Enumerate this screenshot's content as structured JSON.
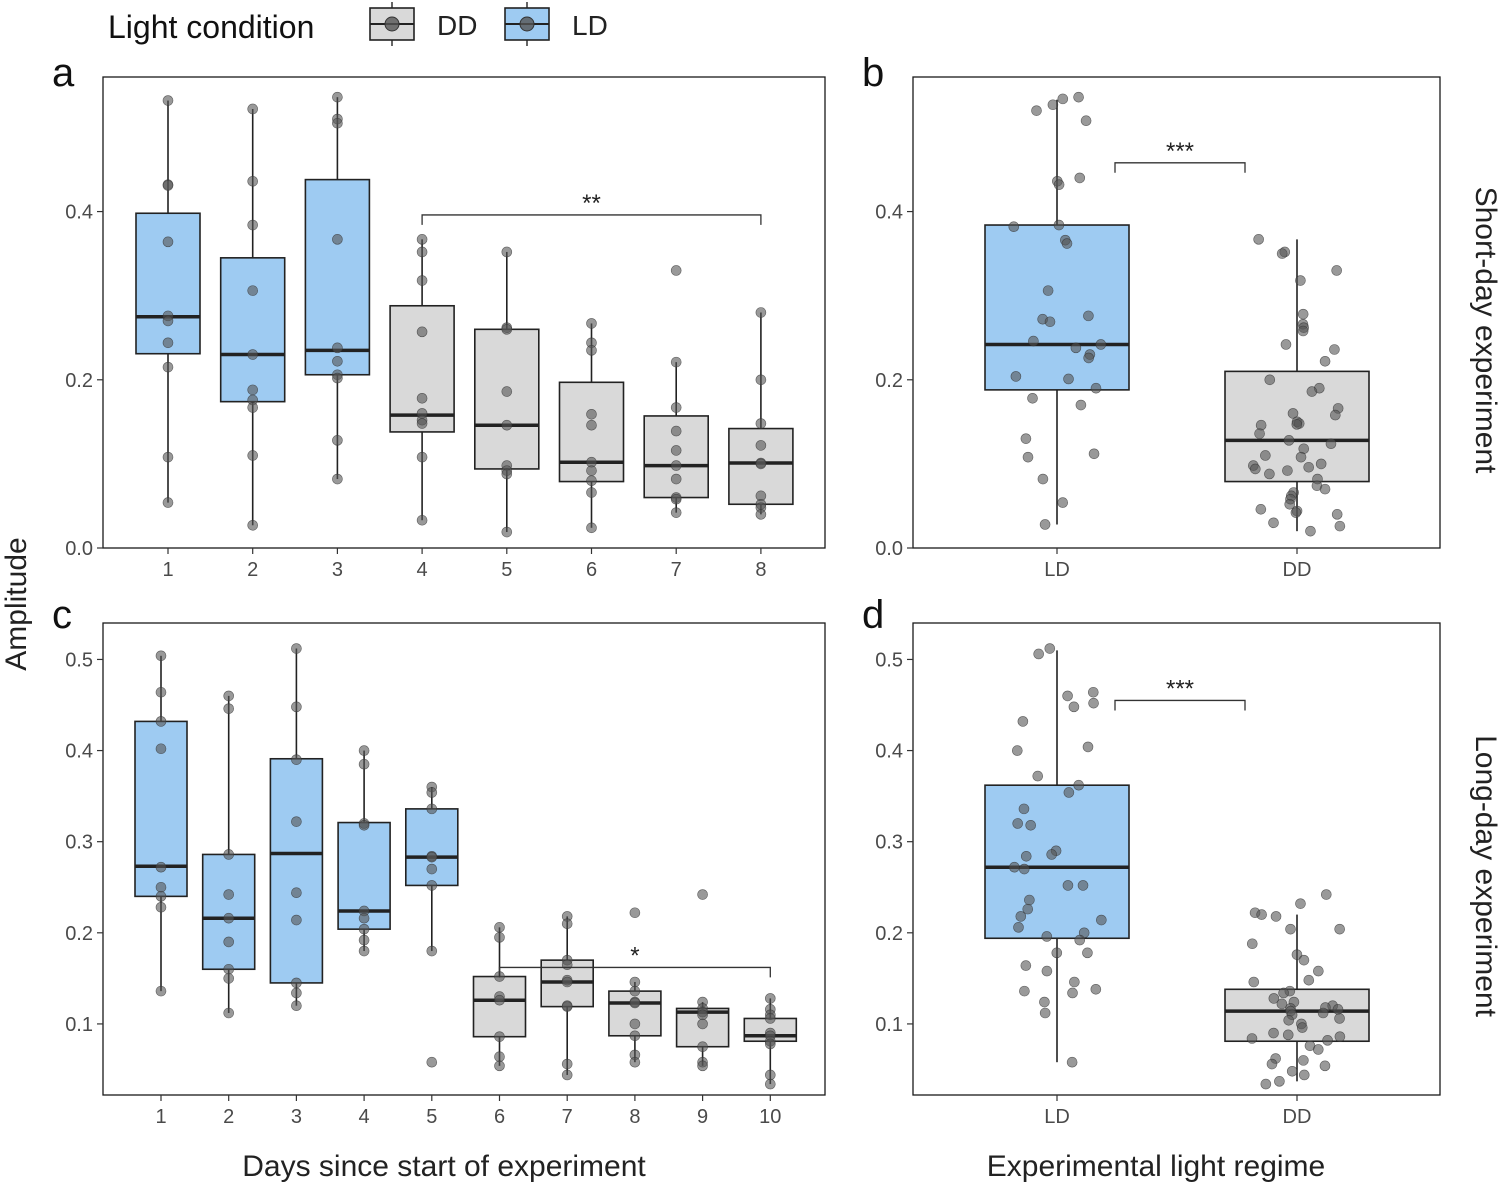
{
  "legend": {
    "title": "Light condition",
    "items": [
      {
        "label": "DD",
        "color": "#d9d9d9"
      },
      {
        "label": "LD",
        "color": "#9ecbf2"
      }
    ]
  },
  "axes": {
    "y_title": "Amplitude",
    "x_title_left": "Days since start of experiment",
    "x_title_right": "Experimental light regime"
  },
  "strips": {
    "top": "Short-day experiment",
    "bottom": "Long-day experiment"
  },
  "colors": {
    "LD": "#9ecbf2",
    "DD": "#d9d9d9"
  },
  "chart_data": [
    {
      "panel": "a",
      "type": "box",
      "categories": [
        "1",
        "2",
        "3",
        "4",
        "5",
        "6",
        "7",
        "8"
      ],
      "ylim": [
        0.0,
        0.56
      ],
      "yticks": [
        0.0,
        0.2,
        0.4
      ],
      "ytick_labels": [
        "0.0",
        "0.2",
        "0.4"
      ],
      "boxes": [
        {
          "cat": "1",
          "group": "LD",
          "q1": 0.231,
          "median": 0.275,
          "q3": 0.398,
          "lo": 0.054,
          "hi": 0.532,
          "points": [
            0.532,
            0.432,
            0.431,
            0.364,
            0.276,
            0.27,
            0.244,
            0.215,
            0.108,
            0.054
          ]
        },
        {
          "cat": "2",
          "group": "LD",
          "q1": 0.174,
          "median": 0.23,
          "q3": 0.345,
          "lo": 0.027,
          "hi": 0.522,
          "points": [
            0.522,
            0.436,
            0.384,
            0.306,
            0.23,
            0.188,
            0.176,
            0.167,
            0.11,
            0.027
          ]
        },
        {
          "cat": "3",
          "group": "LD",
          "q1": 0.206,
          "median": 0.235,
          "q3": 0.438,
          "lo": 0.082,
          "hi": 0.536,
          "points": [
            0.536,
            0.51,
            0.505,
            0.367,
            0.238,
            0.222,
            0.206,
            0.202,
            0.128,
            0.082
          ]
        },
        {
          "cat": "4",
          "group": "DD",
          "q1": 0.138,
          "median": 0.158,
          "q3": 0.288,
          "lo": 0.033,
          "hi": 0.367,
          "points": [
            0.367,
            0.352,
            0.318,
            0.257,
            0.178,
            0.16,
            0.152,
            0.148,
            0.108,
            0.033
          ]
        },
        {
          "cat": "5",
          "group": "DD",
          "q1": 0.094,
          "median": 0.146,
          "q3": 0.26,
          "lo": 0.019,
          "hi": 0.352,
          "points": [
            0.352,
            0.262,
            0.26,
            0.186,
            0.146,
            0.098,
            0.092,
            0.088,
            0.019
          ]
        },
        {
          "cat": "6",
          "group": "DD",
          "q1": 0.079,
          "median": 0.102,
          "q3": 0.197,
          "lo": 0.024,
          "hi": 0.267,
          "points": [
            0.267,
            0.244,
            0.235,
            0.159,
            0.146,
            0.102,
            0.092,
            0.08,
            0.066,
            0.024
          ]
        },
        {
          "cat": "7",
          "group": "DD",
          "q1": 0.06,
          "median": 0.098,
          "q3": 0.157,
          "lo": 0.042,
          "hi": 0.221,
          "points": [
            0.33,
            0.221,
            0.167,
            0.139,
            0.116,
            0.098,
            0.082,
            0.06,
            0.058,
            0.042
          ]
        },
        {
          "cat": "8",
          "group": "DD",
          "q1": 0.052,
          "median": 0.101,
          "q3": 0.142,
          "lo": 0.04,
          "hi": 0.28,
          "points": [
            0.28,
            0.2,
            0.148,
            0.122,
            0.101,
            0.1,
            0.062,
            0.052,
            0.048,
            0.04
          ]
        }
      ],
      "annotations": [
        {
          "from": "4",
          "to": "8",
          "text": "**",
          "y": 0.396
        }
      ]
    },
    {
      "panel": "b",
      "type": "box",
      "categories": [
        "LD",
        "DD"
      ],
      "ylim": [
        0.0,
        0.56
      ],
      "yticks": [
        0.0,
        0.2,
        0.4
      ],
      "ytick_labels": [
        "0.0",
        "0.2",
        "0.4"
      ],
      "boxes": [
        {
          "cat": "LD",
          "group": "LD",
          "q1": 0.188,
          "median": 0.242,
          "q3": 0.384,
          "lo": 0.028,
          "hi": 0.533,
          "points": [
            0.536,
            0.534,
            0.527,
            0.52,
            0.508,
            0.44,
            0.436,
            0.432,
            0.384,
            0.382,
            0.366,
            0.362,
            0.306,
            0.276,
            0.272,
            0.269,
            0.246,
            0.242,
            0.238,
            0.23,
            0.226,
            0.204,
            0.201,
            0.19,
            0.178,
            0.17,
            0.13,
            0.112,
            0.108,
            0.082,
            0.054,
            0.028
          ]
        },
        {
          "cat": "DD",
          "group": "DD",
          "q1": 0.079,
          "median": 0.128,
          "q3": 0.21,
          "lo": 0.02,
          "hi": 0.367,
          "points": [
            0.367,
            0.352,
            0.35,
            0.33,
            0.318,
            0.278,
            0.266,
            0.262,
            0.258,
            0.242,
            0.236,
            0.222,
            0.2,
            0.19,
            0.186,
            0.166,
            0.16,
            0.158,
            0.15,
            0.148,
            0.147,
            0.146,
            0.136,
            0.128,
            0.124,
            0.118,
            0.11,
            0.108,
            0.1,
            0.098,
            0.096,
            0.094,
            0.092,
            0.088,
            0.082,
            0.074,
            0.07,
            0.066,
            0.062,
            0.058,
            0.052,
            0.046,
            0.044,
            0.042,
            0.04,
            0.03,
            0.026,
            0.02
          ]
        }
      ],
      "annotations": [
        {
          "from": "LD",
          "to": "DD",
          "text": "***",
          "y": 0.458
        }
      ]
    },
    {
      "panel": "c",
      "type": "box",
      "categories": [
        "1",
        "2",
        "3",
        "4",
        "5",
        "6",
        "7",
        "8",
        "9",
        "10"
      ],
      "ylim": [
        0.022,
        0.54
      ],
      "yticks": [
        0.1,
        0.2,
        0.3,
        0.4,
        0.5
      ],
      "ytick_labels": [
        "0.1",
        "0.2",
        "0.3",
        "0.4",
        "0.5"
      ],
      "boxes": [
        {
          "cat": "1",
          "group": "LD",
          "q1": 0.24,
          "median": 0.273,
          "q3": 0.432,
          "lo": 0.136,
          "hi": 0.504,
          "points": [
            0.504,
            0.464,
            0.432,
            0.402,
            0.272,
            0.25,
            0.24,
            0.228,
            0.136
          ]
        },
        {
          "cat": "2",
          "group": "LD",
          "q1": 0.16,
          "median": 0.216,
          "q3": 0.286,
          "lo": 0.112,
          "hi": 0.46,
          "points": [
            0.46,
            0.446,
            0.286,
            0.242,
            0.216,
            0.19,
            0.16,
            0.15,
            0.112
          ]
        },
        {
          "cat": "3",
          "group": "LD",
          "q1": 0.145,
          "median": 0.287,
          "q3": 0.391,
          "lo": 0.12,
          "hi": 0.512,
          "points": [
            0.512,
            0.448,
            0.39,
            0.322,
            0.244,
            0.214,
            0.145,
            0.134,
            0.12
          ]
        },
        {
          "cat": "4",
          "group": "LD",
          "q1": 0.204,
          "median": 0.224,
          "q3": 0.321,
          "lo": 0.18,
          "hi": 0.4,
          "points": [
            0.4,
            0.385,
            0.32,
            0.318,
            0.224,
            0.216,
            0.204,
            0.192,
            0.18
          ]
        },
        {
          "cat": "5",
          "group": "LD",
          "q1": 0.252,
          "median": 0.283,
          "q3": 0.336,
          "lo": 0.18,
          "hi": 0.36,
          "points": [
            0.36,
            0.354,
            0.336,
            0.284,
            0.283,
            0.27,
            0.252,
            0.18,
            0.058
          ]
        },
        {
          "cat": "6",
          "group": "DD",
          "q1": 0.086,
          "median": 0.126,
          "q3": 0.152,
          "lo": 0.054,
          "hi": 0.206,
          "points": [
            0.206,
            0.195,
            0.152,
            0.13,
            0.126,
            0.086,
            0.064,
            0.054
          ]
        },
        {
          "cat": "7",
          "group": "DD",
          "q1": 0.119,
          "median": 0.146,
          "q3": 0.17,
          "lo": 0.044,
          "hi": 0.218,
          "points": [
            0.218,
            0.21,
            0.17,
            0.165,
            0.148,
            0.146,
            0.12,
            0.119,
            0.056,
            0.044
          ]
        },
        {
          "cat": "8",
          "group": "DD",
          "q1": 0.087,
          "median": 0.123,
          "q3": 0.136,
          "lo": 0.058,
          "hi": 0.146,
          "points": [
            0.222,
            0.146,
            0.136,
            0.124,
            0.123,
            0.1,
            0.087,
            0.066,
            0.058
          ]
        },
        {
          "cat": "9",
          "group": "DD",
          "q1": 0.075,
          "median": 0.113,
          "q3": 0.117,
          "lo": 0.054,
          "hi": 0.124,
          "points": [
            0.242,
            0.124,
            0.117,
            0.113,
            0.11,
            0.1,
            0.075,
            0.058,
            0.054
          ]
        },
        {
          "cat": "10",
          "group": "DD",
          "q1": 0.081,
          "median": 0.087,
          "q3": 0.106,
          "lo": 0.034,
          "hi": 0.128,
          "points": [
            0.128,
            0.116,
            0.11,
            0.106,
            0.09,
            0.087,
            0.081,
            0.078,
            0.044,
            0.034
          ]
        }
      ],
      "annotations": [
        {
          "from": "6",
          "to": "10",
          "text": "*",
          "y": 0.162
        }
      ]
    },
    {
      "panel": "d",
      "type": "box",
      "categories": [
        "LD",
        "DD"
      ],
      "ylim": [
        0.022,
        0.54
      ],
      "yticks": [
        0.1,
        0.2,
        0.3,
        0.4,
        0.5
      ],
      "ytick_labels": [
        "0.1",
        "0.2",
        "0.3",
        "0.4",
        "0.5"
      ],
      "boxes": [
        {
          "cat": "LD",
          "group": "LD",
          "q1": 0.194,
          "median": 0.272,
          "q3": 0.362,
          "lo": 0.058,
          "hi": 0.51,
          "points": [
            0.512,
            0.506,
            0.464,
            0.46,
            0.452,
            0.448,
            0.432,
            0.404,
            0.4,
            0.372,
            0.362,
            0.354,
            0.336,
            0.32,
            0.318,
            0.29,
            0.286,
            0.284,
            0.272,
            0.27,
            0.252,
            0.252,
            0.236,
            0.226,
            0.218,
            0.214,
            0.206,
            0.2,
            0.196,
            0.192,
            0.178,
            0.178,
            0.164,
            0.158,
            0.146,
            0.138,
            0.136,
            0.134,
            0.124,
            0.112,
            0.058
          ]
        },
        {
          "cat": "DD",
          "group": "DD",
          "q1": 0.081,
          "median": 0.114,
          "q3": 0.138,
          "lo": 0.037,
          "hi": 0.22,
          "points": [
            0.242,
            0.232,
            0.222,
            0.22,
            0.218,
            0.204,
            0.204,
            0.188,
            0.176,
            0.17,
            0.158,
            0.148,
            0.146,
            0.136,
            0.134,
            0.128,
            0.124,
            0.122,
            0.12,
            0.118,
            0.117,
            0.116,
            0.114,
            0.112,
            0.11,
            0.106,
            0.104,
            0.1,
            0.096,
            0.09,
            0.088,
            0.086,
            0.084,
            0.082,
            0.076,
            0.072,
            0.062,
            0.06,
            0.056,
            0.054,
            0.048,
            0.044,
            0.037,
            0.034
          ]
        }
      ],
      "annotations": [
        {
          "from": "LD",
          "to": "DD",
          "text": "***",
          "y": 0.455
        }
      ]
    }
  ]
}
